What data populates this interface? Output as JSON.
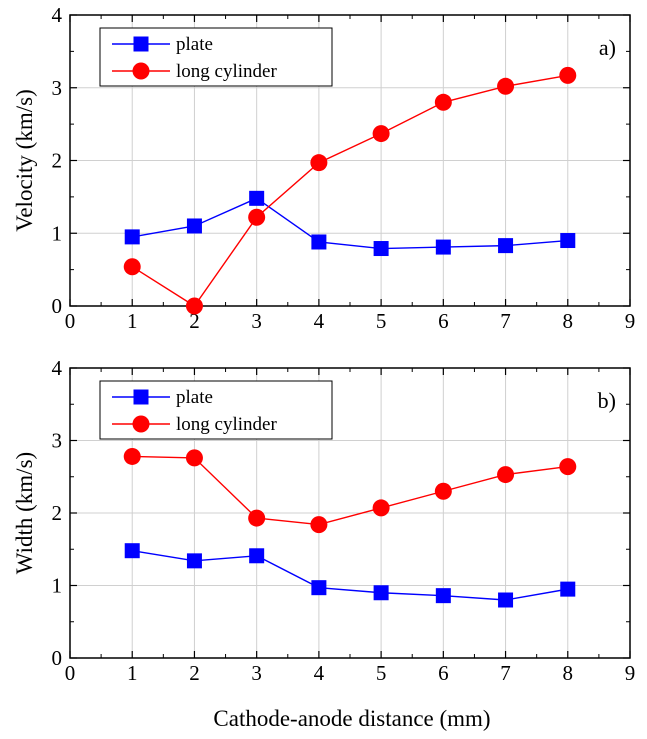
{
  "figure": {
    "xlabel": "Cathode-anode distance (mm)"
  },
  "chart_data": [
    {
      "type": "line",
      "panel_label": "a)",
      "ylabel": "Velocity (km/s)",
      "xlim": [
        0,
        9
      ],
      "ylim": [
        0,
        4
      ],
      "x_ticks": [
        "0",
        "1",
        "2",
        "3",
        "4",
        "5",
        "6",
        "7",
        "8",
        "9"
      ],
      "y_ticks": [
        "0",
        "1",
        "2",
        "3",
        "4"
      ],
      "grid": true,
      "legend_position": "top-left",
      "x": [
        1,
        2,
        3,
        4,
        5,
        6,
        7,
        8
      ],
      "series": [
        {
          "name": "plate",
          "color": "#0000ff",
          "marker": "square",
          "values": [
            0.95,
            1.1,
            1.48,
            0.88,
            0.79,
            0.81,
            0.83,
            0.9
          ]
        },
        {
          "name": "long cylinder",
          "color": "#ff0000",
          "marker": "circle",
          "values": [
            0.54,
            0.0,
            1.22,
            1.97,
            2.37,
            2.8,
            3.02,
            3.17
          ]
        }
      ]
    },
    {
      "type": "line",
      "panel_label": "b)",
      "ylabel": "Width (km/s)",
      "xlim": [
        0,
        9
      ],
      "ylim": [
        0,
        4
      ],
      "x_ticks": [
        "0",
        "1",
        "2",
        "3",
        "4",
        "5",
        "6",
        "7",
        "8",
        "9"
      ],
      "y_ticks": [
        "0",
        "1",
        "2",
        "3",
        "4"
      ],
      "grid": true,
      "legend_position": "top-left",
      "x": [
        1,
        2,
        3,
        4,
        5,
        6,
        7,
        8
      ],
      "series": [
        {
          "name": "plate",
          "color": "#0000ff",
          "marker": "square",
          "values": [
            1.48,
            1.34,
            1.41,
            0.97,
            0.9,
            0.86,
            0.8,
            0.95
          ]
        },
        {
          "name": "long cylinder",
          "color": "#ff0000",
          "marker": "circle",
          "values": [
            2.78,
            2.76,
            1.93,
            1.84,
            2.07,
            2.3,
            2.53,
            2.64
          ]
        }
      ]
    }
  ]
}
